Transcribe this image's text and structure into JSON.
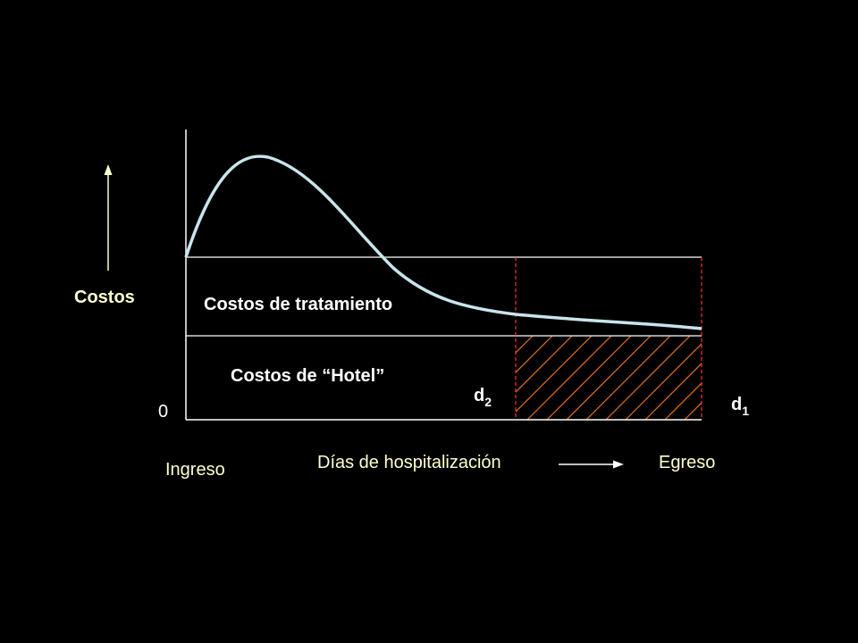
{
  "y_axis_label": "Costos",
  "origin_label": "0",
  "regions": [
    "Costos de tratamiento",
    "Costos de “Hotel”"
  ],
  "markers": [
    {
      "letter": "d",
      "subscript": "2"
    },
    {
      "letter": "d",
      "subscript": "1"
    }
  ],
  "x_axis": {
    "start": "Ingreso",
    "label": "Días de hospitalización",
    "end": "Egreso"
  }
}
